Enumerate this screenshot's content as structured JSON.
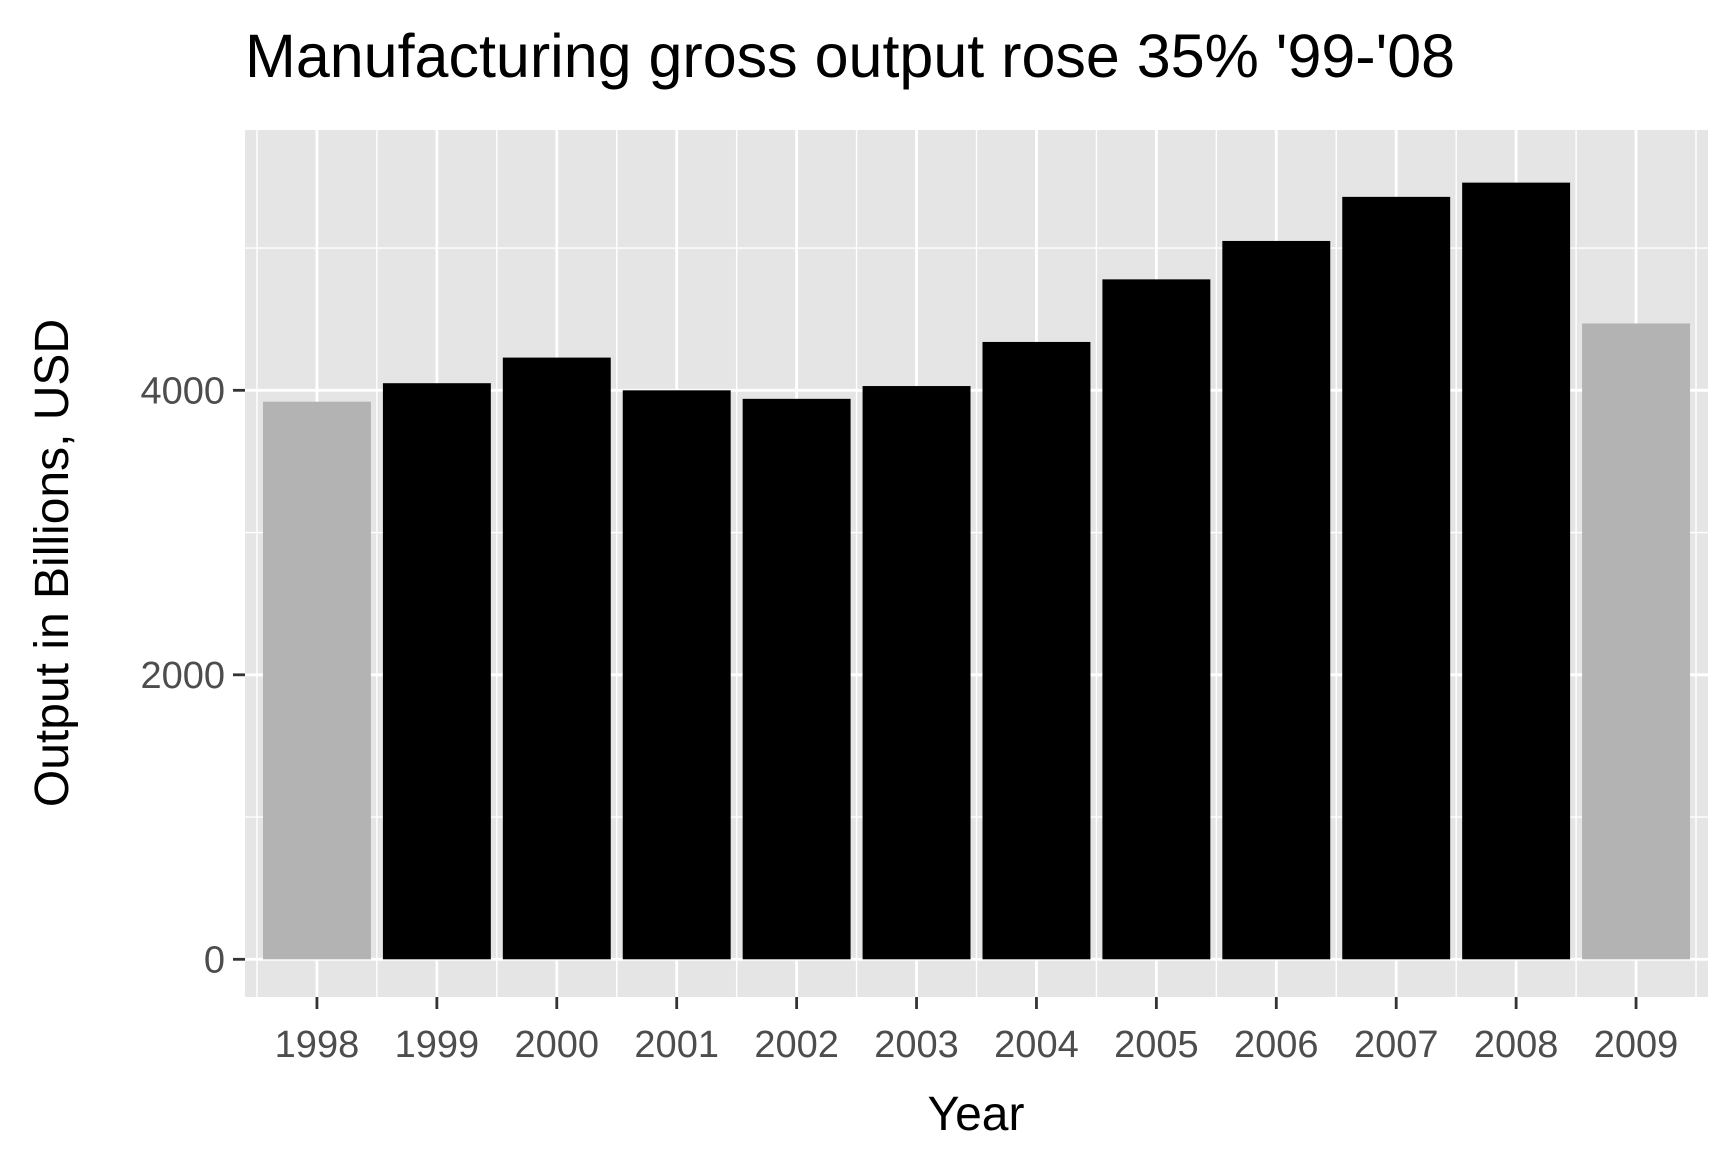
{
  "chart_data": {
    "type": "bar",
    "title": "Manufacturing gross output rose 35% '99-'08",
    "xlabel": "Year",
    "ylabel": "Output in Billions, USD",
    "categories": [
      "1998",
      "1999",
      "2000",
      "2001",
      "2002",
      "2003",
      "2004",
      "2005",
      "2006",
      "2007",
      "2008",
      "2009"
    ],
    "values": [
      3920,
      4050,
      4230,
      4000,
      3940,
      4030,
      4340,
      4780,
      5050,
      5360,
      5460,
      4470
    ],
    "highlighted": [
      false,
      true,
      true,
      true,
      true,
      true,
      true,
      true,
      true,
      true,
      true,
      false
    ],
    "ylim": [
      -265,
      5830
    ],
    "yticks": [
      0,
      2000,
      4000
    ],
    "grid": true,
    "legend": "none",
    "colors": {
      "highlight_bar": "#000000",
      "other_bar": "#b3b3b3",
      "panel_background": "#e5e5e5",
      "gridline": "#ffffff",
      "tick_text": "#4d4d4d"
    }
  }
}
